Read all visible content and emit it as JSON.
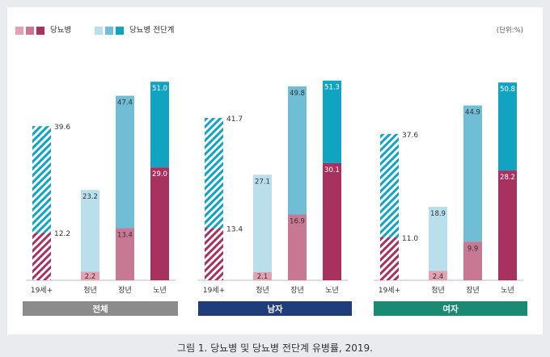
{
  "chart_data": {
    "type": "bar",
    "unit_label": "(단위:%)",
    "legend": [
      {
        "label": "당뇨병",
        "colors": [
          "#e3a1b2",
          "#c97893",
          "#a8325f"
        ]
      },
      {
        "label": "당뇨병 전단계",
        "colors": [
          "#b9dfec",
          "#6fbed6",
          "#11a4c2"
        ]
      }
    ],
    "caption": "그림 1. 당뇨병 및 당뇨병 전단계 유병률, 2019.",
    "categories": [
      "19세+",
      "청년",
      "장년",
      "노년"
    ],
    "groups": [
      {
        "name": "전체",
        "color": "#8c8c8c",
        "diabetes": [
          12.2,
          2.2,
          13.4,
          29.0
        ],
        "prediabetes": [
          39.6,
          23.2,
          47.4,
          51.0
        ],
        "diabetes_labels": [
          "12.2",
          "2.2",
          "13.4",
          "29.0"
        ],
        "prediabetes_labels": [
          "39.6",
          "23.2",
          "47.4",
          "51.0"
        ]
      },
      {
        "name": "남자",
        "color": "#1f3d7a",
        "diabetes": [
          13.4,
          2.1,
          16.9,
          30.1
        ],
        "prediabetes": [
          41.7,
          27.1,
          49.8,
          51.3
        ],
        "diabetes_labels": [
          "13.4",
          "2.1",
          "16.9",
          "30.1"
        ],
        "prediabetes_labels": [
          "41.7",
          "27.1",
          "49.8",
          "51.3"
        ]
      },
      {
        "name": "여자",
        "color": "#1a8a73",
        "diabetes": [
          11.0,
          2.4,
          9.9,
          28.2
        ],
        "prediabetes": [
          37.6,
          18.9,
          44.9,
          50.8
        ],
        "diabetes_labels": [
          "11.0",
          "2.4",
          "9.9",
          "28.2"
        ],
        "prediabetes_labels": [
          "37.6",
          "18.9",
          "44.9",
          "50.8"
        ]
      }
    ],
    "colors": {
      "diabetes": [
        "#a8325f",
        "#e3a1b2",
        "#c97893",
        "#a8325f"
      ],
      "prediabetes": [
        "#11a4c2",
        "#b9dfec",
        "#6fbed6",
        "#11a4c2"
      ],
      "hatch_first_category": true
    }
  }
}
